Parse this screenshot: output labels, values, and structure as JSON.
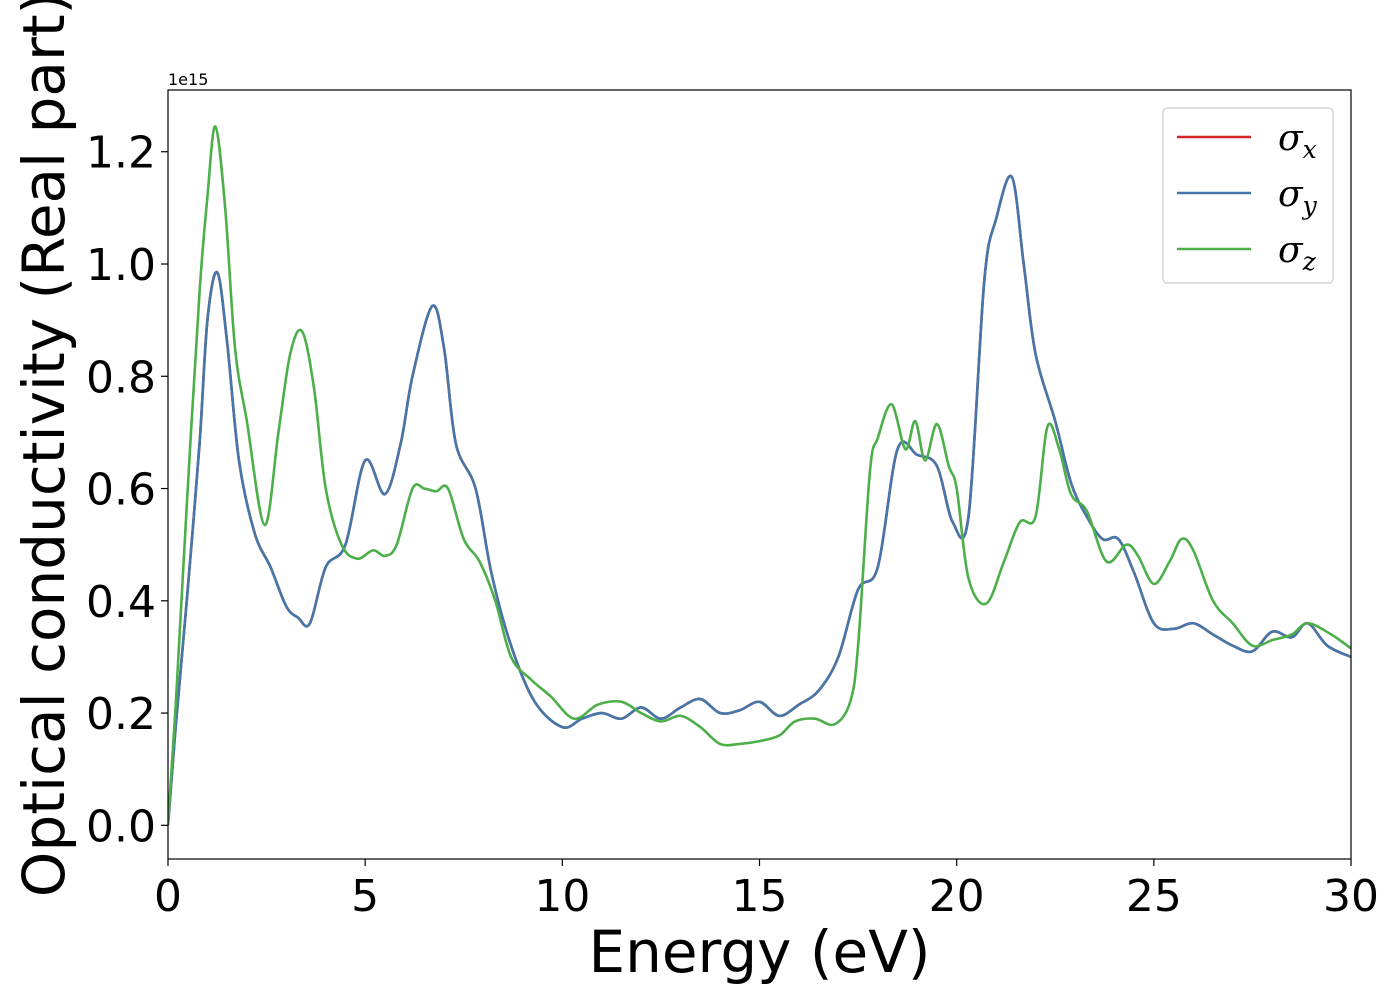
{
  "chart_data": {
    "type": "line",
    "xlabel": "Energy (eV)",
    "ylabel": "Optical conductivity (Real part)",
    "y_offset_label": "1e15",
    "xlim": [
      0,
      30
    ],
    "ylim": [
      -0.06,
      1.31
    ],
    "x_ticks": [
      0,
      5,
      10,
      15,
      20,
      25,
      30
    ],
    "x_tick_labels": [
      "0",
      "5",
      "10",
      "15",
      "20",
      "25",
      "30"
    ],
    "y_ticks": [
      0.0,
      0.2,
      0.4,
      0.6,
      0.8,
      1.0,
      1.2
    ],
    "y_tick_labels": [
      "0.0",
      "0.2",
      "0.4",
      "0.6",
      "0.8",
      "1.0",
      "1.2"
    ],
    "grid": false,
    "legend_position": "top-right",
    "colors": {
      "sigma_x": "#d62728",
      "sigma_y": "#4477aa",
      "sigma_z": "#4daf4a"
    },
    "series": [
      {
        "name": "σx",
        "legend_symbol": "σ",
        "legend_sub": "x",
        "color": "#d62728",
        "points": [
          [
            0,
            0.0
          ],
          [
            0.2,
            0.18
          ],
          [
            0.5,
            0.42
          ],
          [
            0.8,
            0.68
          ],
          [
            1.0,
            0.9
          ],
          [
            1.25,
            0.985
          ],
          [
            1.5,
            0.86
          ],
          [
            1.8,
            0.65
          ],
          [
            2.2,
            0.52
          ],
          [
            2.6,
            0.46
          ],
          [
            3.0,
            0.39
          ],
          [
            3.3,
            0.37
          ],
          [
            3.6,
            0.36
          ],
          [
            4.0,
            0.46
          ],
          [
            4.5,
            0.5
          ],
          [
            5.0,
            0.65
          ],
          [
            5.5,
            0.59
          ],
          [
            5.9,
            0.68
          ],
          [
            6.2,
            0.8
          ],
          [
            6.7,
            0.925
          ],
          [
            7.0,
            0.85
          ],
          [
            7.3,
            0.68
          ],
          [
            7.8,
            0.6
          ],
          [
            8.2,
            0.45
          ],
          [
            8.7,
            0.32
          ],
          [
            9.3,
            0.22
          ],
          [
            10.0,
            0.175
          ],
          [
            10.5,
            0.19
          ],
          [
            11.0,
            0.2
          ],
          [
            11.5,
            0.19
          ],
          [
            12.0,
            0.21
          ],
          [
            12.5,
            0.19
          ],
          [
            13.0,
            0.21
          ],
          [
            13.5,
            0.225
          ],
          [
            14.0,
            0.2
          ],
          [
            14.5,
            0.205
          ],
          [
            15.0,
            0.22
          ],
          [
            15.5,
            0.195
          ],
          [
            16.0,
            0.215
          ],
          [
            16.5,
            0.24
          ],
          [
            17.0,
            0.3
          ],
          [
            17.5,
            0.42
          ],
          [
            18.0,
            0.46
          ],
          [
            18.5,
            0.67
          ],
          [
            19.0,
            0.66
          ],
          [
            19.5,
            0.64
          ],
          [
            19.9,
            0.54
          ],
          [
            20.3,
            0.55
          ],
          [
            20.7,
            0.97
          ],
          [
            21.0,
            1.08
          ],
          [
            21.4,
            1.155
          ],
          [
            21.7,
            1.0
          ],
          [
            22.0,
            0.84
          ],
          [
            22.5,
            0.72
          ],
          [
            22.9,
            0.61
          ],
          [
            23.3,
            0.55
          ],
          [
            23.7,
            0.51
          ],
          [
            24.1,
            0.51
          ],
          [
            24.5,
            0.45
          ],
          [
            25.0,
            0.36
          ],
          [
            25.5,
            0.35
          ],
          [
            26.0,
            0.36
          ],
          [
            26.5,
            0.34
          ],
          [
            27.0,
            0.32
          ],
          [
            27.5,
            0.31
          ],
          [
            28.0,
            0.345
          ],
          [
            28.5,
            0.335
          ],
          [
            28.9,
            0.36
          ],
          [
            29.4,
            0.32
          ],
          [
            30.0,
            0.3
          ]
        ]
      },
      {
        "name": "σy",
        "legend_symbol": "σ",
        "legend_sub": "y",
        "color": "#4477aa",
        "points": [
          [
            0,
            0.0
          ],
          [
            0.2,
            0.18
          ],
          [
            0.5,
            0.42
          ],
          [
            0.8,
            0.68
          ],
          [
            1.0,
            0.9
          ],
          [
            1.25,
            0.985
          ],
          [
            1.5,
            0.86
          ],
          [
            1.8,
            0.65
          ],
          [
            2.2,
            0.52
          ],
          [
            2.6,
            0.46
          ],
          [
            3.0,
            0.39
          ],
          [
            3.3,
            0.37
          ],
          [
            3.6,
            0.36
          ],
          [
            4.0,
            0.46
          ],
          [
            4.5,
            0.5
          ],
          [
            5.0,
            0.65
          ],
          [
            5.5,
            0.59
          ],
          [
            5.9,
            0.68
          ],
          [
            6.2,
            0.8
          ],
          [
            6.7,
            0.925
          ],
          [
            7.0,
            0.85
          ],
          [
            7.3,
            0.68
          ],
          [
            7.8,
            0.6
          ],
          [
            8.2,
            0.45
          ],
          [
            8.7,
            0.32
          ],
          [
            9.3,
            0.22
          ],
          [
            10.0,
            0.175
          ],
          [
            10.5,
            0.19
          ],
          [
            11.0,
            0.2
          ],
          [
            11.5,
            0.19
          ],
          [
            12.0,
            0.21
          ],
          [
            12.5,
            0.19
          ],
          [
            13.0,
            0.21
          ],
          [
            13.5,
            0.225
          ],
          [
            14.0,
            0.2
          ],
          [
            14.5,
            0.205
          ],
          [
            15.0,
            0.22
          ],
          [
            15.5,
            0.195
          ],
          [
            16.0,
            0.215
          ],
          [
            16.5,
            0.24
          ],
          [
            17.0,
            0.3
          ],
          [
            17.5,
            0.42
          ],
          [
            18.0,
            0.46
          ],
          [
            18.5,
            0.67
          ],
          [
            19.0,
            0.66
          ],
          [
            19.5,
            0.64
          ],
          [
            19.9,
            0.54
          ],
          [
            20.3,
            0.55
          ],
          [
            20.7,
            0.97
          ],
          [
            21.0,
            1.08
          ],
          [
            21.4,
            1.155
          ],
          [
            21.7,
            1.0
          ],
          [
            22.0,
            0.84
          ],
          [
            22.5,
            0.72
          ],
          [
            22.9,
            0.61
          ],
          [
            23.3,
            0.55
          ],
          [
            23.7,
            0.51
          ],
          [
            24.1,
            0.51
          ],
          [
            24.5,
            0.45
          ],
          [
            25.0,
            0.36
          ],
          [
            25.5,
            0.35
          ],
          [
            26.0,
            0.36
          ],
          [
            26.5,
            0.34
          ],
          [
            27.0,
            0.32
          ],
          [
            27.5,
            0.31
          ],
          [
            28.0,
            0.345
          ],
          [
            28.5,
            0.335
          ],
          [
            28.9,
            0.36
          ],
          [
            29.4,
            0.32
          ],
          [
            30.0,
            0.3
          ]
        ]
      },
      {
        "name": "σz",
        "legend_symbol": "σ",
        "legend_sub": "z",
        "color": "#4daf4a",
        "points": [
          [
            0,
            0.0
          ],
          [
            0.2,
            0.22
          ],
          [
            0.5,
            0.6
          ],
          [
            0.8,
            0.95
          ],
          [
            1.0,
            1.12
          ],
          [
            1.2,
            1.245
          ],
          [
            1.45,
            1.1
          ],
          [
            1.7,
            0.85
          ],
          [
            2.0,
            0.72
          ],
          [
            2.45,
            0.535
          ],
          [
            2.8,
            0.7
          ],
          [
            3.1,
            0.84
          ],
          [
            3.4,
            0.88
          ],
          [
            3.7,
            0.78
          ],
          [
            4.0,
            0.6
          ],
          [
            4.4,
            0.5
          ],
          [
            4.8,
            0.475
          ],
          [
            5.2,
            0.49
          ],
          [
            5.5,
            0.48
          ],
          [
            5.8,
            0.5
          ],
          [
            6.2,
            0.6
          ],
          [
            6.5,
            0.6
          ],
          [
            6.8,
            0.595
          ],
          [
            7.1,
            0.6
          ],
          [
            7.5,
            0.51
          ],
          [
            7.9,
            0.47
          ],
          [
            8.3,
            0.4
          ],
          [
            8.7,
            0.3
          ],
          [
            9.2,
            0.26
          ],
          [
            9.7,
            0.23
          ],
          [
            10.3,
            0.19
          ],
          [
            10.9,
            0.215
          ],
          [
            11.5,
            0.22
          ],
          [
            12.0,
            0.2
          ],
          [
            12.5,
            0.185
          ],
          [
            13.0,
            0.195
          ],
          [
            13.5,
            0.175
          ],
          [
            14.0,
            0.145
          ],
          [
            14.5,
            0.145
          ],
          [
            15.0,
            0.15
          ],
          [
            15.5,
            0.16
          ],
          [
            15.9,
            0.185
          ],
          [
            16.4,
            0.19
          ],
          [
            16.9,
            0.18
          ],
          [
            17.3,
            0.22
          ],
          [
            17.5,
            0.32
          ],
          [
            17.8,
            0.63
          ],
          [
            18.0,
            0.69
          ],
          [
            18.35,
            0.75
          ],
          [
            18.7,
            0.67
          ],
          [
            18.95,
            0.72
          ],
          [
            19.2,
            0.65
          ],
          [
            19.5,
            0.715
          ],
          [
            19.8,
            0.64
          ],
          [
            20.0,
            0.6
          ],
          [
            20.3,
            0.44
          ],
          [
            20.75,
            0.395
          ],
          [
            21.2,
            0.47
          ],
          [
            21.6,
            0.54
          ],
          [
            22.0,
            0.55
          ],
          [
            22.3,
            0.71
          ],
          [
            22.6,
            0.67
          ],
          [
            22.9,
            0.59
          ],
          [
            23.3,
            0.56
          ],
          [
            23.8,
            0.47
          ],
          [
            24.3,
            0.5
          ],
          [
            24.6,
            0.48
          ],
          [
            25.0,
            0.43
          ],
          [
            25.4,
            0.47
          ],
          [
            25.7,
            0.51
          ],
          [
            26.0,
            0.49
          ],
          [
            26.5,
            0.4
          ],
          [
            27.0,
            0.36
          ],
          [
            27.5,
            0.32
          ],
          [
            28.0,
            0.33
          ],
          [
            28.5,
            0.34
          ],
          [
            28.9,
            0.36
          ],
          [
            29.5,
            0.34
          ],
          [
            30.0,
            0.315
          ]
        ]
      }
    ]
  }
}
